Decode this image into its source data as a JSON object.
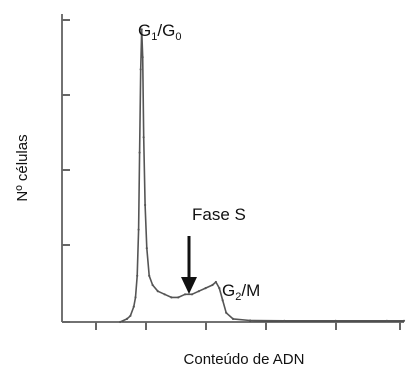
{
  "chart_data": {
    "type": "line",
    "title": "",
    "xlabel": "Conteúdo de ADN",
    "ylabel": "Nº células",
    "grid": false,
    "legend": "none",
    "xlim": [
      0,
      1000
    ],
    "ylim": [
      0,
      1
    ],
    "series": [
      {
        "color": "#555555",
        "points": [
          [
            170,
            0.0
          ],
          [
            190,
            0.01
          ],
          [
            200,
            0.02
          ],
          [
            210,
            0.05
          ],
          [
            215,
            0.08
          ],
          [
            220,
            0.15
          ],
          [
            224,
            0.3
          ],
          [
            227,
            0.55
          ],
          [
            230,
            0.82
          ],
          [
            233,
            0.95
          ],
          [
            236,
            0.86
          ],
          [
            239,
            0.6
          ],
          [
            243,
            0.38
          ],
          [
            248,
            0.24
          ],
          [
            255,
            0.15
          ],
          [
            265,
            0.12
          ],
          [
            280,
            0.1
          ],
          [
            300,
            0.09
          ],
          [
            320,
            0.08
          ],
          [
            340,
            0.08
          ],
          [
            360,
            0.09
          ],
          [
            380,
            0.09
          ],
          [
            400,
            0.1
          ],
          [
            420,
            0.11
          ],
          [
            440,
            0.12
          ],
          [
            450,
            0.13
          ],
          [
            460,
            0.11
          ],
          [
            470,
            0.07
          ],
          [
            480,
            0.03
          ],
          [
            500,
            0.01
          ],
          [
            550,
            0.005
          ],
          [
            650,
            0.004
          ],
          [
            800,
            0.004
          ],
          [
            950,
            0.004
          ],
          [
            1000,
            0.004
          ]
        ]
      }
    ],
    "annotations": {
      "g1_label": {
        "main": "G",
        "sub": "1",
        "sep": "/G",
        "sub2": "0"
      },
      "phase_s": "Fase S",
      "g2_label": {
        "main": "G",
        "sub": "2",
        "rest": "/M"
      }
    }
  }
}
